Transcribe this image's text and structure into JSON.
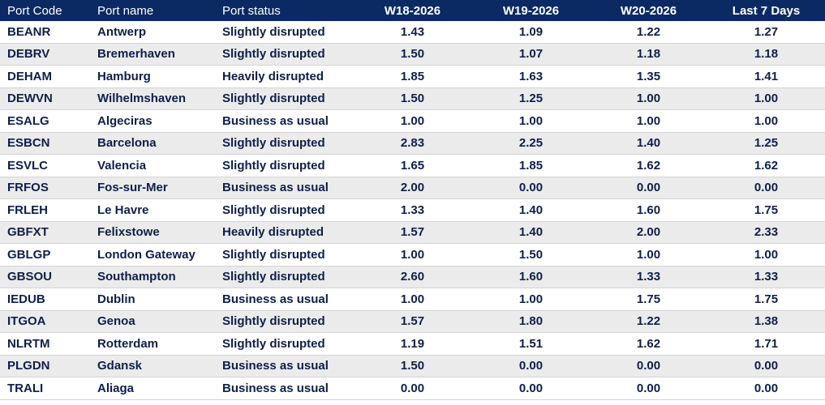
{
  "headers": [
    "Port Code",
    "Port name",
    "Port status",
    "W18-2026",
    "W19-2026",
    "W20-2026",
    "Last 7 Days"
  ],
  "rows": [
    [
      "BEANR",
      "Antwerp",
      "Slightly disrupted",
      "1.43",
      "1.09",
      "1.22",
      "1.27"
    ],
    [
      "DEBRV",
      "Bremerhaven",
      "Slightly disrupted",
      "1.50",
      "1.07",
      "1.18",
      "1.18"
    ],
    [
      "DEHAM",
      "Hamburg",
      "Heavily disrupted",
      "1.85",
      "1.63",
      "1.35",
      "1.41"
    ],
    [
      "DEWVN",
      "Wilhelmshaven",
      "Slightly disrupted",
      "1.50",
      "1.25",
      "1.00",
      "1.00"
    ],
    [
      "ESALG",
      "Algeciras",
      "Business as usual",
      "1.00",
      "1.00",
      "1.00",
      "1.00"
    ],
    [
      "ESBCN",
      "Barcelona",
      "Slightly disrupted",
      "2.83",
      "2.25",
      "1.40",
      "1.25"
    ],
    [
      "ESVLC",
      "Valencia",
      "Slightly disrupted",
      "1.65",
      "1.85",
      "1.62",
      "1.62"
    ],
    [
      "FRFOS",
      "Fos-sur-Mer",
      "Business as usual",
      "2.00",
      "0.00",
      "0.00",
      "0.00"
    ],
    [
      "FRLEH",
      "Le Havre",
      "Slightly disrupted",
      "1.33",
      "1.40",
      "1.60",
      "1.75"
    ],
    [
      "GBFXT",
      "Felixstowe",
      "Heavily disrupted",
      "1.57",
      "1.40",
      "2.00",
      "2.33"
    ],
    [
      "GBLGP",
      "London Gateway",
      "Slightly disrupted",
      "1.00",
      "1.50",
      "1.00",
      "1.00"
    ],
    [
      "GBSOU",
      "Southampton",
      "Slightly disrupted",
      "2.60",
      "1.60",
      "1.33",
      "1.33"
    ],
    [
      "IEDUB",
      "Dublin",
      "Business as usual",
      "1.00",
      "1.00",
      "1.75",
      "1.75"
    ],
    [
      "ITGOA",
      "Genoa",
      "Slightly disrupted",
      "1.57",
      "1.80",
      "1.22",
      "1.38"
    ],
    [
      "NLRTM",
      "Rotterdam",
      "Slightly disrupted",
      "1.19",
      "1.51",
      "1.62",
      "1.71"
    ],
    [
      "PLGDN",
      "Gdansk",
      "Business as usual",
      "1.50",
      "0.00",
      "0.00",
      "0.00"
    ],
    [
      "TRALI",
      "Aliaga",
      "Business as usual",
      "0.00",
      "0.00",
      "0.00",
      "0.00"
    ]
  ]
}
